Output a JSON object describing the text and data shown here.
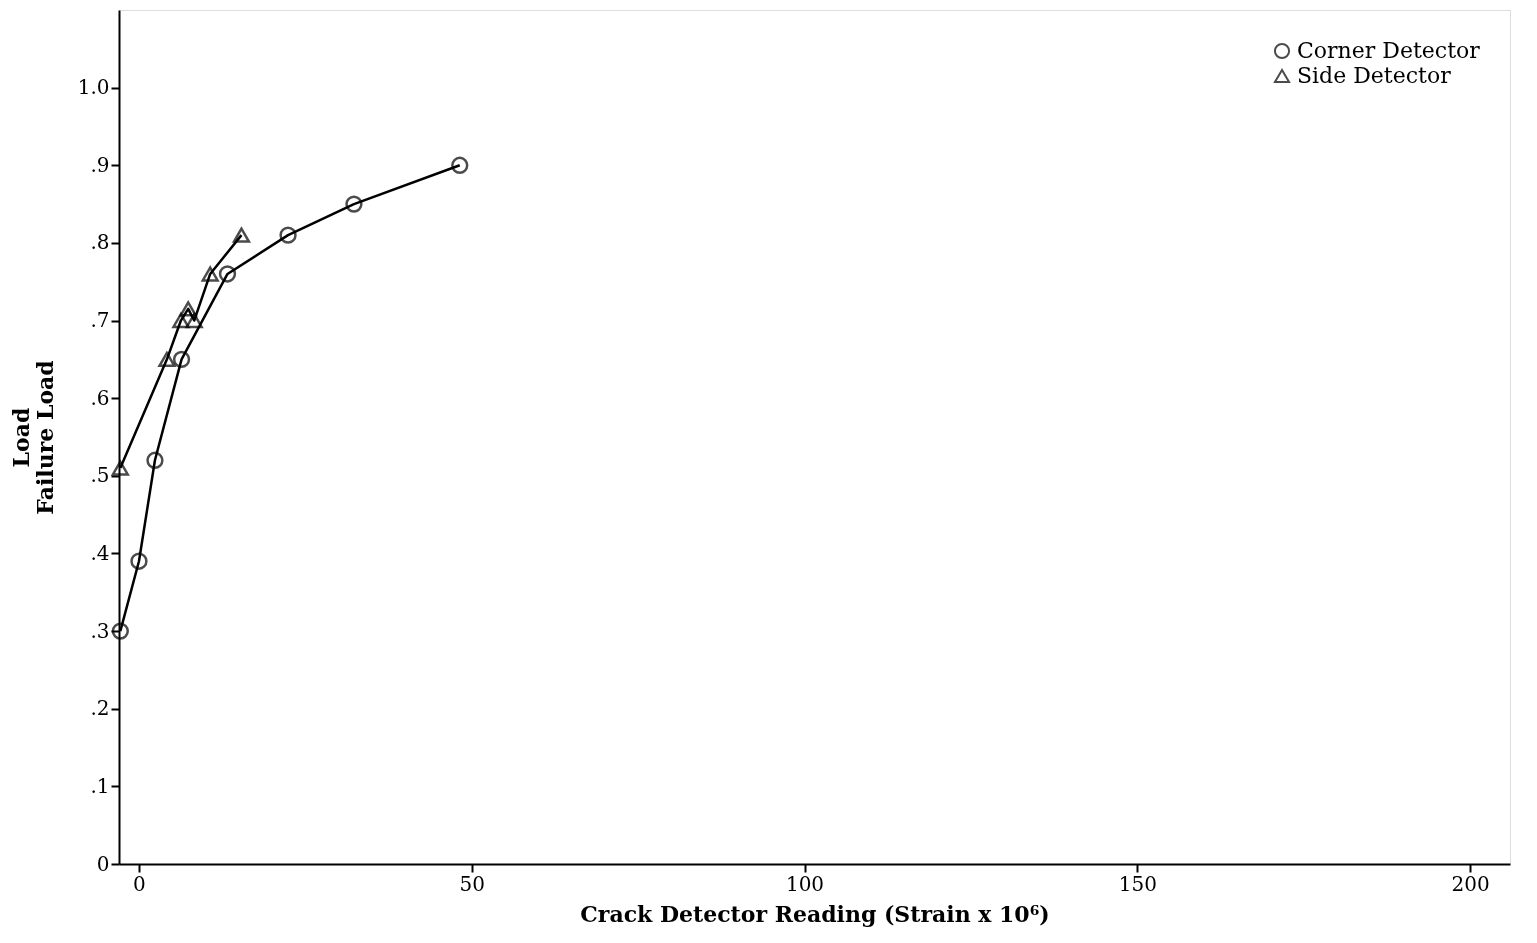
{
  "chart_data": {
    "type": "line",
    "xlabel": "Crack Detector Reading (Strain x 10⁶)",
    "ylabel": "Load\nFailure Load",
    "xlim": [
      -3,
      206
    ],
    "xticks": [
      0,
      50,
      100,
      150,
      200
    ],
    "ylim": [
      0,
      1.1
    ],
    "yticks": [
      {
        "value": 0,
        "label": "0"
      },
      {
        "value": 0.1,
        "label": ".1"
      },
      {
        "value": 0.2,
        "label": ".2"
      },
      {
        "value": 0.3,
        "label": ".3"
      },
      {
        "value": 0.4,
        "label": ".4"
      },
      {
        "value": 0.5,
        "label": ".5"
      },
      {
        "value": 0.6,
        "label": ".6"
      },
      {
        "value": 0.7,
        "label": ".7"
      },
      {
        "value": 0.8,
        "label": ".8"
      },
      {
        "value": 0.9,
        "label": ".9"
      },
      {
        "value": 1.0,
        "label": "1.0"
      }
    ],
    "grid": false,
    "legend": "top right",
    "line_style": "solid",
    "series": [
      {
        "name": "Corner Detector",
        "color": "#000000",
        "marker": "circle",
        "x": [
          -2.8,
          0,
          2.4,
          6.4,
          13.3,
          22.4,
          32.3,
          48.2
        ],
        "values": [
          0.3,
          0.39,
          0.52,
          0.65,
          0.76,
          0.81,
          0.85,
          0.9
        ]
      },
      {
        "name": "Side Detector",
        "color": "#000000",
        "marker": "triangle",
        "x": [
          -2.8,
          4.2,
          6.3,
          7.4,
          8.3,
          10.7,
          15.4
        ],
        "values": [
          0.51,
          0.65,
          0.7,
          0.715,
          0.7,
          0.76,
          0.81
        ]
      }
    ]
  }
}
